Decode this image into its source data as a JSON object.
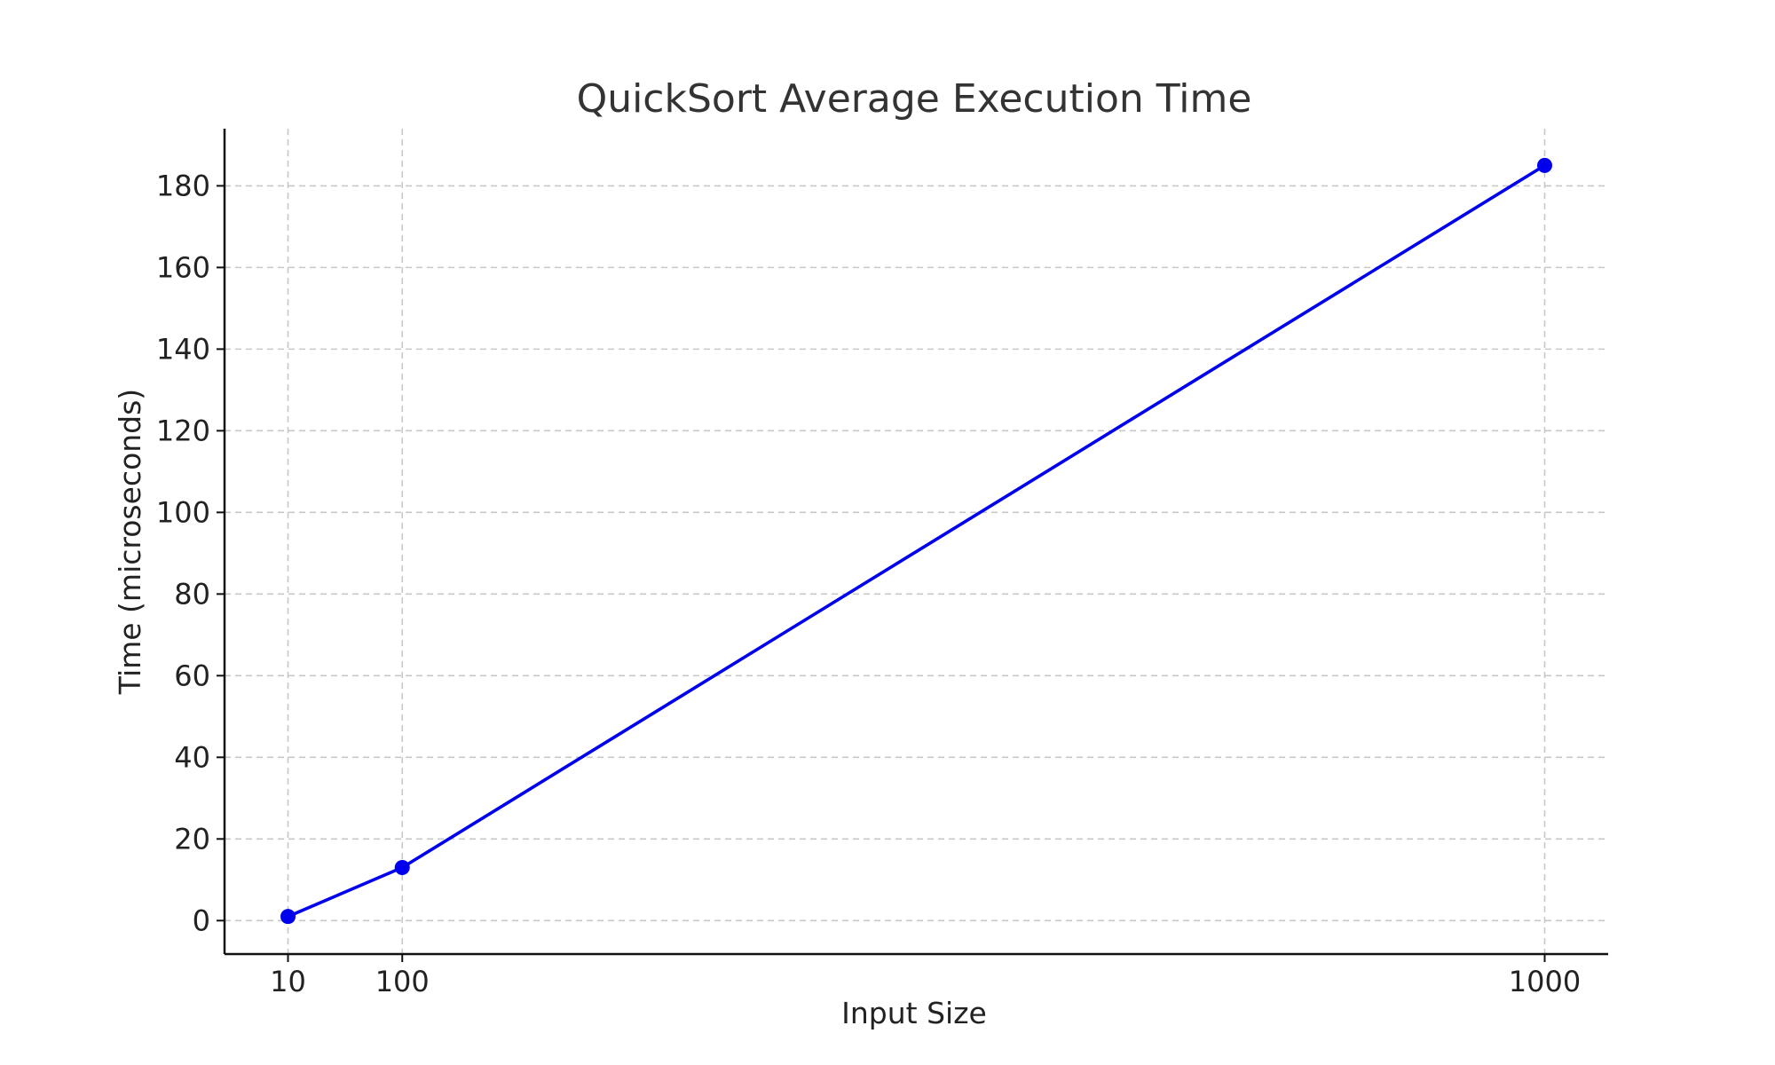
{
  "chart_data": {
    "type": "line",
    "title": "QuickSort Average Execution Time",
    "xlabel": "Input Size",
    "ylabel": "Time (microseconds)",
    "x": [
      10,
      100,
      1000
    ],
    "series": [
      {
        "values": [
          1,
          13,
          185
        ],
        "color": "#0000ee"
      }
    ],
    "x_ticks": [
      10,
      100,
      1000
    ],
    "x_tick_labels": [
      "10",
      "100",
      "1000"
    ],
    "y_ticks": [
      0,
      20,
      40,
      60,
      80,
      100,
      120,
      140,
      160,
      180
    ],
    "y_tick_labels": [
      "0",
      "20",
      "40",
      "60",
      "80",
      "100",
      "120",
      "140",
      "160",
      "180"
    ],
    "xlim": [
      -40,
      1050
    ],
    "ylim": [
      -8.2,
      194
    ],
    "grid": true,
    "legend": "none"
  }
}
